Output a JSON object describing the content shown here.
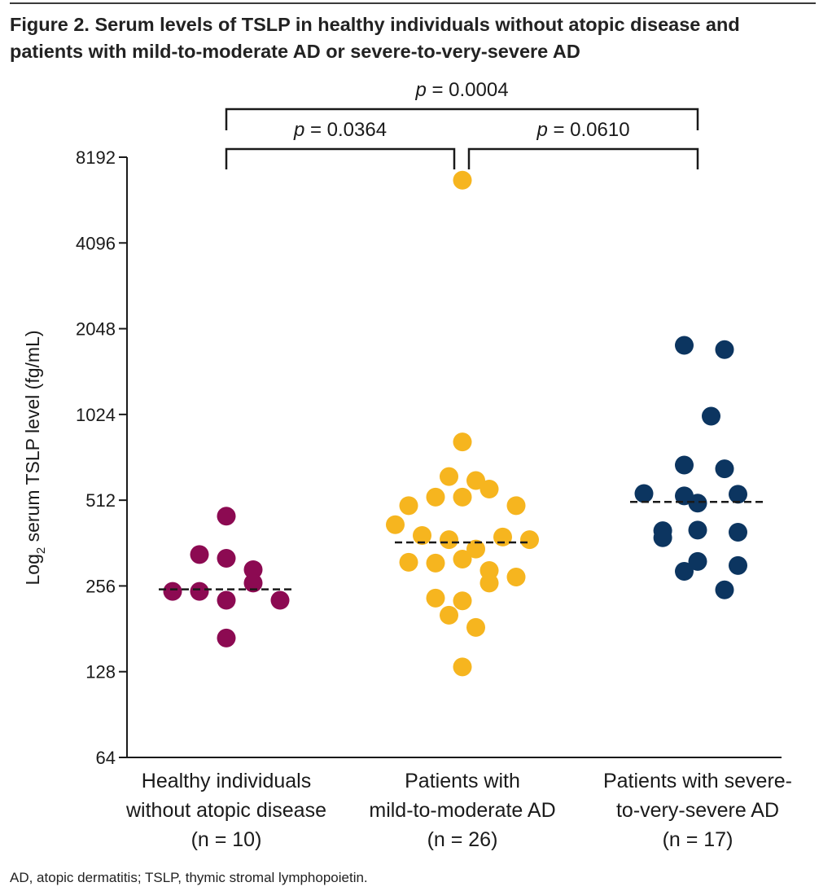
{
  "figure": {
    "title_line1": "Figure 2. Serum levels of TSLP in healthy individuals without atopic disease and",
    "title_line2": "patients with mild-to-moderate AD or severe-to-very-severe AD",
    "footnote": "AD, atopic dermatitis; TSLP, thymic stromal lymphopoietin."
  },
  "chart_data": {
    "type": "scatter",
    "title": "Serum levels of TSLP in healthy individuals without atopic disease and patients with mild-to-moderate AD or severe-to-very-severe AD",
    "ylabel_main": "Log",
    "ylabel_sub": "2",
    "ylabel_rest": " serum TSLP level (fg/mL)",
    "yscale": "log2",
    "ylim": [
      64,
      8192
    ],
    "yticks": [
      64,
      128,
      256,
      512,
      1024,
      2048,
      4096,
      8192
    ],
    "categories": [
      {
        "lines": [
          "Healthy individuals",
          "without atopic disease",
          "(n = 10)"
        ]
      },
      {
        "lines": [
          "Patients with",
          "mild-to-moderate AD",
          "(n = 26)"
        ]
      },
      {
        "lines": [
          "Patients with severe-",
          "to-very-severe AD",
          "(n = 17)"
        ]
      }
    ],
    "series": [
      {
        "name": "Healthy individuals without atopic disease",
        "n": 10,
        "color": "#8c0a52",
        "median": 249,
        "points": [
          {
            "offset": 0,
            "value": 450
          },
          {
            "offset": -1,
            "value": 330
          },
          {
            "offset": 0,
            "value": 320
          },
          {
            "offset": 1,
            "value": 292
          },
          {
            "offset": 1,
            "value": 262
          },
          {
            "offset": -2,
            "value": 245
          },
          {
            "offset": -1,
            "value": 245
          },
          {
            "offset": 0,
            "value": 228
          },
          {
            "offset": 2,
            "value": 228
          },
          {
            "offset": 0,
            "value": 168
          }
        ]
      },
      {
        "name": "Patients with mild-to-moderate AD",
        "n": 26,
        "color": "#f6b51f",
        "median": 364,
        "points": [
          {
            "offset": 0,
            "value": 6800
          },
          {
            "offset": 0,
            "value": 820
          },
          {
            "offset": -0.5,
            "value": 620
          },
          {
            "offset": 0.5,
            "value": 600
          },
          {
            "offset": 1,
            "value": 560
          },
          {
            "offset": -1,
            "value": 525
          },
          {
            "offset": 0,
            "value": 525
          },
          {
            "offset": -2,
            "value": 490
          },
          {
            "offset": 2,
            "value": 490
          },
          {
            "offset": -2.5,
            "value": 420
          },
          {
            "offset": -1.5,
            "value": 385
          },
          {
            "offset": -0.5,
            "value": 372
          },
          {
            "offset": 1.5,
            "value": 380
          },
          {
            "offset": 2.5,
            "value": 372
          },
          {
            "offset": 0.5,
            "value": 345
          },
          {
            "offset": 0,
            "value": 318
          },
          {
            "offset": -2,
            "value": 310
          },
          {
            "offset": -1,
            "value": 308
          },
          {
            "offset": 1,
            "value": 290
          },
          {
            "offset": 2,
            "value": 275
          },
          {
            "offset": 1,
            "value": 262
          },
          {
            "offset": -1,
            "value": 232
          },
          {
            "offset": 0,
            "value": 227
          },
          {
            "offset": -0.5,
            "value": 202
          },
          {
            "offset": 0.5,
            "value": 183
          },
          {
            "offset": 0,
            "value": 133
          }
        ]
      },
      {
        "name": "Patients with severe-to-very-severe AD",
        "n": 17,
        "color": "#0c3560",
        "median": 505,
        "points": [
          {
            "offset": -0.5,
            "value": 1790
          },
          {
            "offset": 1,
            "value": 1730
          },
          {
            "offset": 0.5,
            "value": 1010
          },
          {
            "offset": -0.5,
            "value": 680
          },
          {
            "offset": 1,
            "value": 660
          },
          {
            "offset": -2,
            "value": 540
          },
          {
            "offset": -0.5,
            "value": 530
          },
          {
            "offset": 1.5,
            "value": 537
          },
          {
            "offset": 0,
            "value": 500
          },
          {
            "offset": -1.3,
            "value": 400
          },
          {
            "offset": 0,
            "value": 402
          },
          {
            "offset": 1.5,
            "value": 395
          },
          {
            "offset": -1.3,
            "value": 378
          },
          {
            "offset": 0,
            "value": 312
          },
          {
            "offset": 1.5,
            "value": 302
          },
          {
            "offset": -0.5,
            "value": 288
          },
          {
            "offset": 1,
            "value": 248
          }
        ]
      }
    ],
    "comparisons": [
      {
        "label_p": "p",
        "label_rest": " = 0.0004",
        "from": 0,
        "to": 2,
        "level": 2
      },
      {
        "label_p": "p",
        "label_rest": " = 0.0364",
        "from": 0,
        "to": 1,
        "level": 1
      },
      {
        "label_p": "p",
        "label_rest": " = 0.0610",
        "from": 1,
        "to": 2,
        "level": 1
      }
    ]
  }
}
